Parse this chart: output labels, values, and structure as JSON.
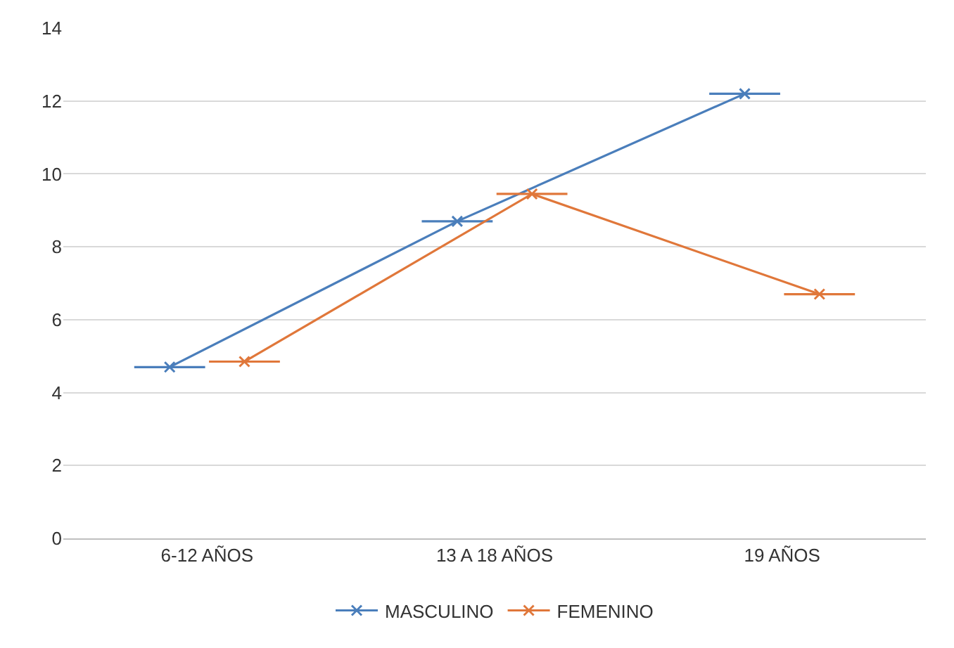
{
  "chart_data": {
    "type": "line",
    "categories": [
      "6-12 AÑOS",
      "13 A 18 AÑOS",
      "19 AÑOS"
    ],
    "series": [
      {
        "name": "MASCULINO",
        "color": "#4a7ebb",
        "values": [
          4.7,
          8.7,
          12.2
        ]
      },
      {
        "name": "FEMENINO",
        "color": "#e0773a",
        "values": [
          4.85,
          9.45,
          6.7
        ]
      }
    ],
    "ylim": [
      0,
      14
    ],
    "yticks": [
      0,
      2,
      4,
      6,
      8,
      10,
      12,
      14
    ],
    "grid": "y",
    "legend": "bottom",
    "marker": "cross",
    "line_style": "solid"
  }
}
